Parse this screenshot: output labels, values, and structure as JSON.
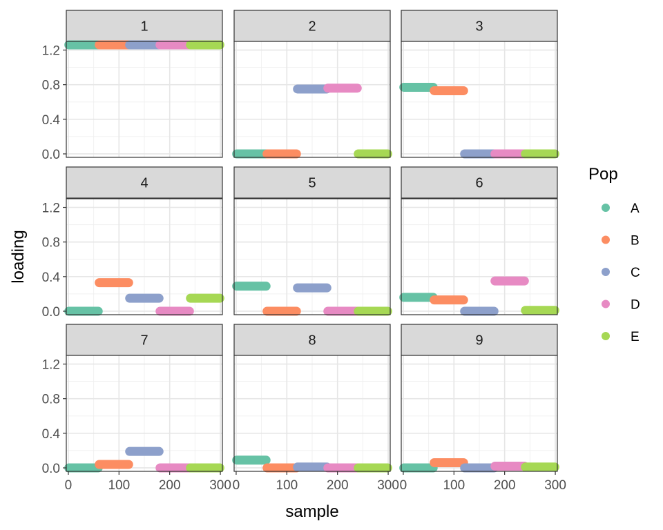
{
  "chart_data": {
    "type": "line",
    "facet_type": "faceted segments (ggplot facet_wrap, 3x3)",
    "xlabel": "sample",
    "ylabel": "loading",
    "xlim": [
      -4,
      304
    ],
    "ylim": [
      -0.04,
      1.3
    ],
    "x_ticks": [
      0,
      100,
      200,
      300
    ],
    "x_tick_labels": [
      "0",
      "100",
      "200",
      "300"
    ],
    "y_ticks": [
      0.0,
      0.4,
      0.8,
      1.2
    ],
    "y_tick_labels": [
      "0.0",
      "0.4",
      "0.8",
      "1.2"
    ],
    "y_minor_ticks": [
      0.2,
      0.6,
      1.0
    ],
    "x_minor_ticks": [
      50,
      150,
      250
    ],
    "grid": true,
    "legend": {
      "title": "Pop",
      "position": "right",
      "entries": [
        {
          "label": "A",
          "color": "#66C2A5"
        },
        {
          "label": "B",
          "color": "#FC8D62"
        },
        {
          "label": "C",
          "color": "#8DA0CB"
        },
        {
          "label": "D",
          "color": "#E78AC3"
        },
        {
          "label": "E",
          "color": "#A6D854"
        }
      ]
    },
    "groups": [
      {
        "pop": "A",
        "x_range": [
          0,
          60
        ]
      },
      {
        "pop": "B",
        "x_range": [
          60,
          120
        ]
      },
      {
        "pop": "C",
        "x_range": [
          120,
          180
        ]
      },
      {
        "pop": "D",
        "x_range": [
          180,
          240
        ]
      },
      {
        "pop": "E",
        "x_range": [
          240,
          300
        ]
      }
    ],
    "panels": [
      {
        "label": "1",
        "values": {
          "A": 1.26,
          "B": 1.26,
          "C": 1.26,
          "D": 1.26,
          "E": 1.26
        }
      },
      {
        "label": "2",
        "values": {
          "A": 0.0,
          "B": 0.0,
          "C": 0.75,
          "D": 0.76,
          "E": 0.0
        }
      },
      {
        "label": "3",
        "values": {
          "A": 0.77,
          "B": 0.73,
          "C": 0.0,
          "D": 0.0,
          "E": 0.0
        }
      },
      {
        "label": "4",
        "values": {
          "A": 0.0,
          "B": 0.33,
          "C": 0.15,
          "D": 0.0,
          "E": 0.15
        }
      },
      {
        "label": "5",
        "values": {
          "A": 0.29,
          "B": 0.0,
          "C": 0.27,
          "D": 0.0,
          "E": 0.0
        }
      },
      {
        "label": "6",
        "values": {
          "A": 0.16,
          "B": 0.13,
          "C": 0.0,
          "D": 0.35,
          "E": 0.01
        }
      },
      {
        "label": "7",
        "values": {
          "A": 0.0,
          "B": 0.04,
          "C": 0.19,
          "D": 0.0,
          "E": 0.0
        }
      },
      {
        "label": "8",
        "values": {
          "A": 0.09,
          "B": 0.0,
          "C": 0.01,
          "D": 0.0,
          "E": 0.0
        }
      },
      {
        "label": "9",
        "values": {
          "A": 0.0,
          "B": 0.06,
          "C": 0.0,
          "D": 0.02,
          "E": 0.01
        }
      }
    ]
  }
}
